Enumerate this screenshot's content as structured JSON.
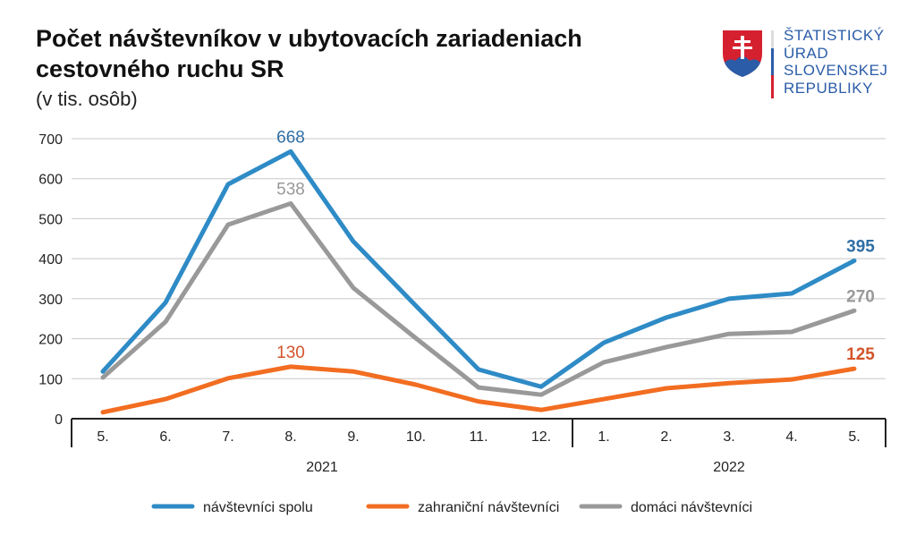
{
  "title_line1": "Počet návštevníkov v ubytovacích zariadeniach",
  "title_line2": "cestovného ruchu SR",
  "subtitle": "(v tis. osôb)",
  "logo": {
    "lines": [
      "ŠTATISTICKÝ",
      "ÚRAD",
      "SLOVENSKEJ",
      "REPUBLIKY"
    ]
  },
  "chart_data": {
    "type": "line",
    "categories": [
      "5.",
      "6.",
      "7.",
      "8.",
      "9.",
      "10.",
      "11.",
      "12.",
      "1.",
      "2.",
      "3.",
      "4.",
      "5."
    ],
    "year_groups": [
      {
        "label": "2021",
        "months": 8
      },
      {
        "label": "2022",
        "months": 5
      }
    ],
    "ylim": [
      0,
      700
    ],
    "yticks": [
      0,
      100,
      200,
      300,
      400,
      500,
      600,
      700
    ],
    "grid": true,
    "legend_placement": "bottom",
    "series": [
      {
        "name": "návštevníci spolu",
        "color": "#2e8bc6",
        "values": [
          118,
          290,
          586,
          668,
          443,
          282,
          123,
          80,
          190,
          253,
          300,
          313,
          395
        ],
        "labels": [
          {
            "index": 3,
            "text": "668",
            "bold": false
          },
          {
            "index": 12,
            "text": "395",
            "bold": true
          }
        ]
      },
      {
        "name": "zahraniční návštevníci",
        "color": "#f26d21",
        "values": [
          16,
          49,
          101,
          130,
          118,
          85,
          43,
          22,
          49,
          76,
          89,
          98,
          125
        ],
        "labels": [
          {
            "index": 3,
            "text": "130",
            "bold": false
          },
          {
            "index": 12,
            "text": "125",
            "bold": true
          }
        ]
      },
      {
        "name": "domáci návštevníci",
        "color": "#999999",
        "values": [
          103,
          242,
          485,
          538,
          327,
          201,
          78,
          60,
          141,
          179,
          212,
          217,
          270
        ],
        "labels": [
          {
            "index": 3,
            "text": "538",
            "bold": false
          },
          {
            "index": 12,
            "text": "270",
            "bold": true
          }
        ]
      }
    ],
    "label_colors": {
      "návštevníci spolu": "#2e6fa6",
      "zahraniční návštevníci": "#d2542a",
      "domáci návštevníci": "#999999"
    }
  }
}
